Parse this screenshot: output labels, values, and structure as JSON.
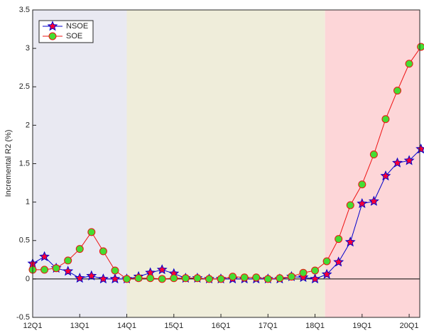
{
  "chart_data": {
    "type": "line",
    "y_label": "Incremental R2 (%)",
    "categories": [
      "12Q1",
      null,
      null,
      null,
      "13Q1",
      null,
      null,
      null,
      "14Q1",
      null,
      null,
      null,
      "15Q1",
      null,
      null,
      null,
      "16Q1",
      null,
      null,
      null,
      "17Q1",
      null,
      null,
      null,
      "18Q1",
      null,
      null,
      null,
      "19Q1",
      null,
      null,
      null,
      "20Q1",
      null
    ],
    "series": [
      {
        "name": "NSOE",
        "color": "#0000cc",
        "marker": "star",
        "marker_color": "#ff0033",
        "marker_edge": "#0000cc",
        "values": [
          0.2,
          0.29,
          0.14,
          0.1,
          0.01,
          0.04,
          0,
          0,
          0,
          0.03,
          0.08,
          0.12,
          0.07,
          0.01,
          0.01,
          0,
          0,
          0,
          0,
          0,
          0,
          0,
          0.03,
          0.02,
          0,
          0.06,
          0.22,
          0.48,
          0.98,
          1.01,
          1.34,
          1.51,
          1.54,
          1.69
        ]
      },
      {
        "name": "SOE",
        "color": "#ee1111",
        "marker": "circle",
        "marker_color": "#44dd33",
        "marker_edge": "#ee1111",
        "values": [
          0.12,
          0.12,
          0.14,
          0.24,
          0.39,
          0.61,
          0.36,
          0.11,
          0,
          0.01,
          0.01,
          0,
          0.01,
          0.01,
          0.01,
          0,
          0,
          0.03,
          0.02,
          0.02,
          0,
          0.01,
          0.03,
          0.08,
          0.11,
          0.23,
          0.52,
          0.96,
          1.23,
          1.62,
          2.08,
          2.45,
          2.8,
          3.02
        ]
      }
    ],
    "regions": [
      {
        "from": 0,
        "to": 8,
        "color": "#e9e9f2"
      },
      {
        "from": 8,
        "to": 24.85,
        "color": "#efedda"
      },
      {
        "from": 24.85,
        "to": 32.9,
        "color": "#fdd6d8"
      }
    ],
    "ylim": [
      -0.5,
      3.5
    ],
    "yticks": [
      -0.5,
      0,
      0.5,
      1,
      1.5,
      2,
      2.5,
      3,
      3.5
    ],
    "zero_line": true,
    "legend": "top-left"
  }
}
